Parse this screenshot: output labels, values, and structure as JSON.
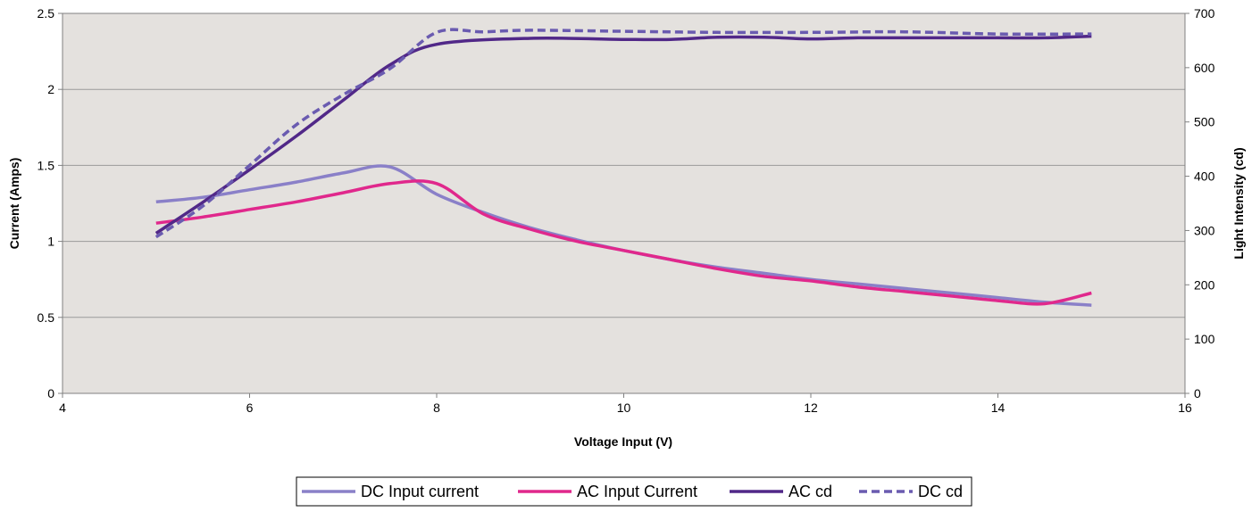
{
  "chart_data": {
    "type": "line",
    "xlabel": "Voltage Input (V)",
    "ylabel_left": "Current (Amps)",
    "ylabel_right": "Light Intensity (cd)",
    "xlim": [
      4,
      16
    ],
    "ylim_left": [
      0,
      2.5
    ],
    "ylim_right": [
      0,
      700
    ],
    "x_ticks": [
      "4",
      "6",
      "8",
      "10",
      "12",
      "14",
      "16"
    ],
    "y_left_ticks": [
      "0",
      "0.5",
      "1",
      "1.5",
      "2",
      "2.5"
    ],
    "y_right_ticks": [
      "0",
      "100",
      "200",
      "300",
      "400",
      "500",
      "600",
      "700"
    ],
    "grid": "horizontal",
    "plot_background": "#e4e1de",
    "legend_position": "bottom",
    "series": [
      {
        "name": "DC Input current",
        "axis": "left",
        "color": "#8a80c8",
        "dash": "solid",
        "points": [
          [
            5,
            1.26
          ],
          [
            5.5,
            1.29
          ],
          [
            6,
            1.34
          ],
          [
            6.5,
            1.39
          ],
          [
            7,
            1.45
          ],
          [
            7.5,
            1.49
          ],
          [
            8,
            1.31
          ],
          [
            8.5,
            1.19
          ],
          [
            9,
            1.09
          ],
          [
            9.5,
            1.01
          ],
          [
            10,
            0.94
          ],
          [
            10.5,
            0.88
          ],
          [
            11,
            0.83
          ],
          [
            11.5,
            0.79
          ],
          [
            12,
            0.75
          ],
          [
            12.5,
            0.72
          ],
          [
            13,
            0.69
          ],
          [
            13.5,
            0.66
          ],
          [
            14,
            0.63
          ],
          [
            14.5,
            0.6
          ],
          [
            15,
            0.58
          ]
        ]
      },
      {
        "name": "AC Input Current",
        "axis": "left",
        "color": "#e0288c",
        "dash": "solid",
        "points": [
          [
            5,
            1.12
          ],
          [
            5.5,
            1.16
          ],
          [
            6,
            1.21
          ],
          [
            6.5,
            1.26
          ],
          [
            7,
            1.32
          ],
          [
            7.5,
            1.38
          ],
          [
            8,
            1.38
          ],
          [
            8.5,
            1.18
          ],
          [
            9,
            1.08
          ],
          [
            9.5,
            1.0
          ],
          [
            10,
            0.94
          ],
          [
            10.5,
            0.88
          ],
          [
            11,
            0.82
          ],
          [
            11.5,
            0.77
          ],
          [
            12,
            0.74
          ],
          [
            12.5,
            0.7
          ],
          [
            13,
            0.67
          ],
          [
            13.5,
            0.64
          ],
          [
            14,
            0.61
          ],
          [
            14.5,
            0.59
          ],
          [
            15,
            0.66
          ]
        ]
      },
      {
        "name": "AC cd",
        "axis": "right",
        "color": "#512888",
        "dash": "solid",
        "points": [
          [
            5,
            295
          ],
          [
            5.5,
            352
          ],
          [
            6,
            412
          ],
          [
            6.5,
            474
          ],
          [
            7,
            540
          ],
          [
            7.5,
            605
          ],
          [
            8,
            643
          ],
          [
            9,
            654
          ],
          [
            10,
            652
          ],
          [
            10.5,
            652
          ],
          [
            11,
            656
          ],
          [
            11.5,
            656
          ],
          [
            12,
            653
          ],
          [
            12.5,
            655
          ],
          [
            13,
            655
          ],
          [
            13.5,
            655
          ],
          [
            14,
            655
          ],
          [
            14.5,
            655
          ],
          [
            15,
            658
          ]
        ]
      },
      {
        "name": "DC cd",
        "axis": "right",
        "color": "#6a5bb0",
        "dash": "dashed",
        "points": [
          [
            5,
            288
          ],
          [
            5.5,
            345
          ],
          [
            6,
            420
          ],
          [
            6.5,
            495
          ],
          [
            7,
            550
          ],
          [
            7.5,
            598
          ],
          [
            8,
            665
          ],
          [
            8.5,
            666
          ],
          [
            9,
            669
          ],
          [
            10,
            667
          ],
          [
            11,
            665
          ],
          [
            12,
            665
          ],
          [
            13,
            666
          ],
          [
            14,
            662
          ],
          [
            15,
            662
          ]
        ]
      }
    ]
  }
}
